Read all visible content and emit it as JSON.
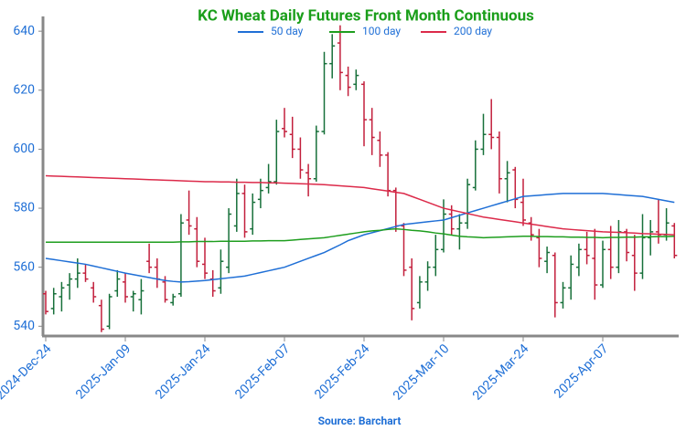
{
  "chart_data": {
    "type": "ohlc",
    "title": "KC Wheat Daily Futures Front Month Continuous",
    "source": "Source: Barchart",
    "categories": [
      "2024-Dec-24",
      null,
      null,
      null,
      null,
      null,
      null,
      null,
      null,
      null,
      "2025-Jan-09",
      null,
      null,
      null,
      null,
      null,
      null,
      null,
      null,
      null,
      "2025-Jan-24",
      null,
      null,
      null,
      null,
      null,
      null,
      null,
      null,
      null,
      "2025-Feb-07",
      null,
      null,
      null,
      null,
      null,
      null,
      null,
      null,
      null,
      "2025-Feb-24",
      null,
      null,
      null,
      null,
      null,
      null,
      null,
      null,
      null,
      "2025-Mar-10",
      null,
      null,
      null,
      null,
      null,
      null,
      null,
      null,
      null,
      "2025-Mar-24",
      null,
      null,
      null,
      null,
      null,
      null,
      null,
      null,
      null,
      "2025-Apr-07",
      null,
      null,
      null,
      null,
      null,
      null,
      null,
      null,
      null
    ],
    "open": [
      551,
      546,
      550,
      554,
      556,
      558,
      553,
      547,
      540,
      552,
      555,
      550,
      549,
      562,
      560,
      555,
      548,
      551,
      576,
      573,
      561,
      556,
      553,
      560,
      574,
      585,
      573,
      583,
      587,
      589,
      607,
      605,
      600,
      592,
      590,
      606,
      629,
      636,
      625,
      622,
      622,
      610,
      603,
      598,
      586,
      574,
      560,
      548,
      555,
      560,
      566,
      578,
      573,
      575,
      587,
      600,
      605,
      604,
      590,
      593,
      582,
      575,
      570,
      562,
      564,
      548,
      553,
      560,
      566,
      563,
      554,
      566,
      560,
      572,
      564,
      558,
      570,
      572,
      571,
      574
    ],
    "high": [
      552,
      553,
      555,
      558,
      563,
      561,
      555,
      549,
      551,
      559,
      558,
      552,
      556,
      568,
      563,
      557,
      551,
      578,
      586,
      577,
      570,
      559,
      566,
      580,
      590,
      588,
      585,
      590,
      595,
      610,
      614,
      611,
      604,
      595,
      608,
      633,
      639,
      642,
      628,
      627,
      623,
      614,
      606,
      599,
      587,
      575,
      563,
      557,
      562,
      571,
      583,
      581,
      578,
      590,
      603,
      612,
      617,
      606,
      596,
      594,
      590,
      577,
      573,
      567,
      565,
      555,
      564,
      568,
      572,
      573,
      569,
      574,
      576,
      573,
      571,
      578,
      576,
      583,
      580,
      575
    ],
    "low": [
      544,
      544,
      545,
      549,
      553,
      555,
      548,
      538,
      539,
      550,
      548,
      545,
      544,
      558,
      553,
      548,
      547,
      550,
      571,
      560,
      556,
      550,
      551,
      558,
      572,
      570,
      571,
      580,
      585,
      588,
      604,
      597,
      590,
      584,
      589,
      605,
      624,
      620,
      618,
      620,
      601,
      598,
      594,
      584,
      572,
      557,
      542,
      546,
      552,
      557,
      565,
      571,
      566,
      573,
      586,
      598,
      600,
      585,
      582,
      580,
      574,
      569,
      560,
      558,
      543,
      546,
      549,
      557,
      561,
      549,
      553,
      556,
      558,
      562,
      552,
      556,
      564,
      568,
      569,
      563
    ],
    "close": [
      545,
      551,
      553,
      556,
      558,
      556,
      550,
      539,
      550,
      556,
      550,
      551,
      552,
      560,
      556,
      549,
      550,
      575,
      574,
      562,
      558,
      552,
      562,
      578,
      585,
      572,
      582,
      586,
      589,
      606,
      606,
      600,
      593,
      590,
      606,
      629,
      635,
      626,
      621,
      625,
      610,
      604,
      598,
      586,
      574,
      559,
      546,
      555,
      560,
      566,
      578,
      573,
      575,
      588,
      600,
      605,
      604,
      590,
      592,
      583,
      576,
      571,
      563,
      565,
      548,
      553,
      561,
      566,
      564,
      554,
      566,
      560,
      572,
      565,
      558,
      570,
      572,
      571,
      575,
      564
    ],
    "up_color": "#17703a",
    "down_color": "#c21f3c",
    "series": [
      {
        "name": "50 day",
        "color": "#1f6fd6",
        "values": [
          563,
          562.6,
          562.2,
          561.8,
          561.4,
          561,
          560.4,
          559.8,
          559.2,
          558.6,
          558,
          557.5,
          557,
          556.5,
          556,
          555.5,
          555.2,
          555,
          555.1,
          555.3,
          555.5,
          555.8,
          556.1,
          556.4,
          556.7,
          557,
          557.6,
          558.2,
          558.8,
          559.4,
          560,
          561,
          562,
          563,
          564,
          565,
          566.3,
          567.6,
          569,
          570,
          571,
          571.7,
          572.4,
          573.1,
          573.8,
          574.5,
          574.8,
          575.1,
          575.4,
          575.7,
          576,
          576.8,
          577.6,
          578.4,
          579.2,
          580,
          580.8,
          581.6,
          582.4,
          583.2,
          584,
          584.2,
          584.4,
          584.6,
          584.8,
          585,
          585,
          585,
          585,
          585,
          585,
          584.8,
          584.6,
          584.4,
          584.2,
          584,
          583.5,
          583,
          582.5,
          582
        ]
      },
      {
        "name": "100 day",
        "color": "#1e9e1e",
        "values": [
          568.5,
          568.5,
          568.5,
          568.5,
          568.5,
          568.5,
          568.5,
          568.5,
          568.5,
          568.5,
          568.5,
          568.5,
          568.5,
          568.5,
          568.5,
          568.5,
          568.5,
          568.6,
          568.6,
          568.7,
          568.7,
          568.7,
          568.8,
          568.8,
          568.8,
          568.8,
          568.9,
          568.9,
          569,
          569,
          569,
          569.2,
          569.4,
          569.6,
          569.8,
          570,
          570.4,
          570.8,
          571.2,
          571.6,
          572,
          572.3,
          572.5,
          572.8,
          573,
          572.8,
          572.5,
          572.3,
          572,
          571.6,
          571.3,
          570.9,
          570.5,
          570.3,
          570.2,
          570,
          570.1,
          570.2,
          570.3,
          570.4,
          570.5,
          570.5,
          570.4,
          570.4,
          570.3,
          570.3,
          570.2,
          570.2,
          570.1,
          570.1,
          570,
          570.1,
          570.1,
          570.2,
          570.2,
          570.3,
          570.3,
          570.4,
          570.4,
          570.5
        ]
      },
      {
        "name": "200 day",
        "color": "#dc2a4a",
        "values": [
          591,
          590.9,
          590.8,
          590.7,
          590.6,
          590.5,
          590.4,
          590.3,
          590.2,
          590.1,
          590,
          589.9,
          589.8,
          589.7,
          589.6,
          589.5,
          589.4,
          589.3,
          589.2,
          589.1,
          589,
          589,
          588.9,
          588.9,
          588.8,
          588.8,
          588.7,
          588.7,
          588.6,
          588.6,
          588.5,
          588.4,
          588.3,
          588.2,
          588.1,
          588,
          587.8,
          587.6,
          587.4,
          587.2,
          587,
          586.6,
          586.2,
          585.8,
          585.4,
          585,
          584,
          583,
          582,
          581,
          580,
          579.4,
          578.8,
          578.2,
          577.6,
          577,
          576.6,
          576.2,
          575.8,
          575.4,
          575,
          574.6,
          574.2,
          573.8,
          573.4,
          573,
          572.8,
          572.6,
          572.4,
          572.2,
          572,
          571.9,
          571.8,
          571.7,
          571.6,
          571.4,
          571.3,
          571.2,
          571.1,
          571
        ]
      }
    ],
    "ylim": [
      537,
      645
    ],
    "yticks": [
      540,
      560,
      580,
      600,
      620,
      640
    ]
  }
}
